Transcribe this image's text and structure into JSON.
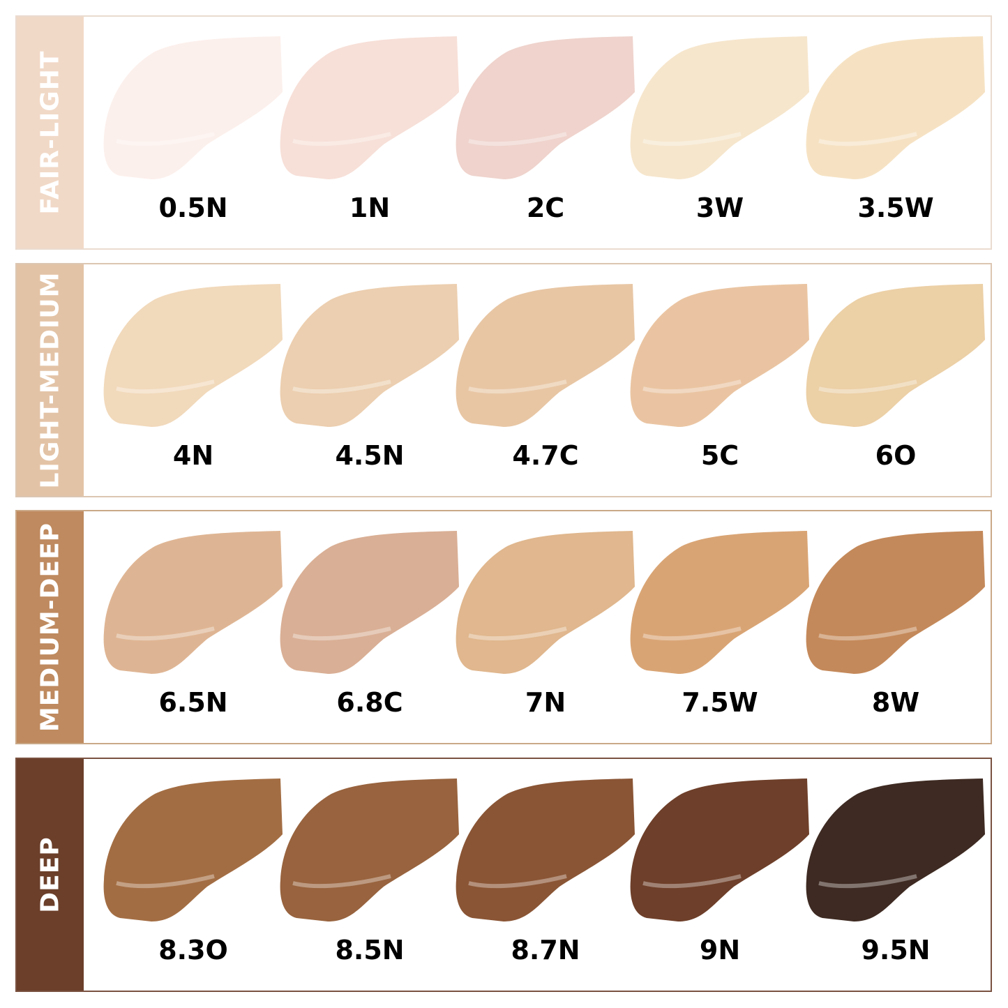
{
  "rows": [
    {
      "label": "FAIR-LIGHT",
      "bar_color": "#f1d9c7",
      "border_color": "#eadbcf",
      "shades": [
        {
          "name": "0.5N",
          "color": "#fcf0ec"
        },
        {
          "name": "1N",
          "color": "#f7e0d8"
        },
        {
          "name": "2C",
          "color": "#efd3cc"
        },
        {
          "name": "3W",
          "color": "#f6e6cc"
        },
        {
          "name": "3.5W",
          "color": "#f6e2c3"
        }
      ]
    },
    {
      "label": "LIGHT-MEDIUM",
      "bar_color": "#e3c3a6",
      "border_color": "#dcc6b2",
      "shades": [
        {
          "name": "4N",
          "color": "#f1d9bb"
        },
        {
          "name": "4.5N",
          "color": "#eccfb0"
        },
        {
          "name": "4.7C",
          "color": "#e8c6a4"
        },
        {
          "name": "5C",
          "color": "#eac4a2"
        },
        {
          "name": "6O",
          "color": "#ecd0a6"
        }
      ]
    },
    {
      "label": "MEDIUM-DEEP",
      "bar_color": "#bf8a5f",
      "border_color": "#c9a887",
      "shades": [
        {
          "name": "6.5N",
          "color": "#deb594"
        },
        {
          "name": "6.8C",
          "color": "#d9af95"
        },
        {
          "name": "7N",
          "color": "#e0b78e"
        },
        {
          "name": "7.5W",
          "color": "#d9a474"
        },
        {
          "name": "8W",
          "color": "#c4895a"
        }
      ]
    },
    {
      "label": "DEEP",
      "bar_color": "#6b3f2a",
      "border_color": "#7a5240",
      "shades": [
        {
          "name": "8.3O",
          "color": "#a36d43"
        },
        {
          "name": "8.5N",
          "color": "#98633e"
        },
        {
          "name": "8.7N",
          "color": "#8a5535"
        },
        {
          "name": "9N",
          "color": "#6e3f2a"
        },
        {
          "name": "9.5N",
          "color": "#3e2a22"
        }
      ]
    }
  ]
}
